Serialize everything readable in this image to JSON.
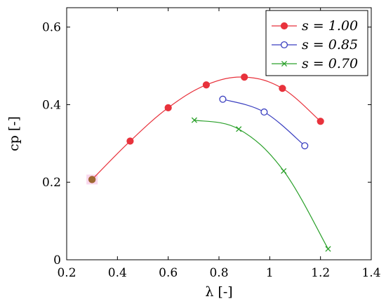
{
  "chart_data": {
    "type": "line",
    "xlabel": "λ [-]",
    "ylabel": "cp [-]",
    "xlim": [
      0.2,
      1.4
    ],
    "ylim": [
      0,
      0.65
    ],
    "xticks": [
      0.2,
      0.4,
      0.6,
      0.8,
      1.0,
      1.2,
      1.4
    ],
    "xtick_labels": [
      "0.2",
      "0.4",
      "0.6",
      "0.8",
      "1",
      "1.2",
      "1.4"
    ],
    "yticks": [
      0,
      0.2,
      0.4,
      0.6
    ],
    "ytick_labels": [
      "0",
      "0.2",
      "0.4",
      "0.6"
    ],
    "grid": false,
    "legend_position": "top-right",
    "series": [
      {
        "name": "s = 1.00",
        "color": "#e8323c",
        "marker": "filled-circle",
        "x": [
          0.3,
          0.45,
          0.6,
          0.75,
          0.9,
          1.05,
          1.2
        ],
        "y": [
          0.207,
          0.306,
          0.392,
          0.451,
          0.471,
          0.442,
          0.357
        ]
      },
      {
        "name": "s = 0.85",
        "color": "#3a3fc0",
        "marker": "open-circle",
        "x": [
          0.815,
          0.978,
          1.138
        ],
        "y": [
          0.414,
          0.381,
          0.294
        ]
      },
      {
        "name": "s = 0.70",
        "color": "#2aa02a",
        "marker": "cross",
        "x": [
          0.703,
          0.878,
          1.055,
          1.23
        ],
        "y": [
          0.36,
          0.337,
          0.229,
          0.028
        ]
      }
    ],
    "annotations": [
      {
        "x": 0.3,
        "y": 0.207,
        "color": "#9c6a32",
        "highlight": "#f7c6e6"
      }
    ]
  }
}
